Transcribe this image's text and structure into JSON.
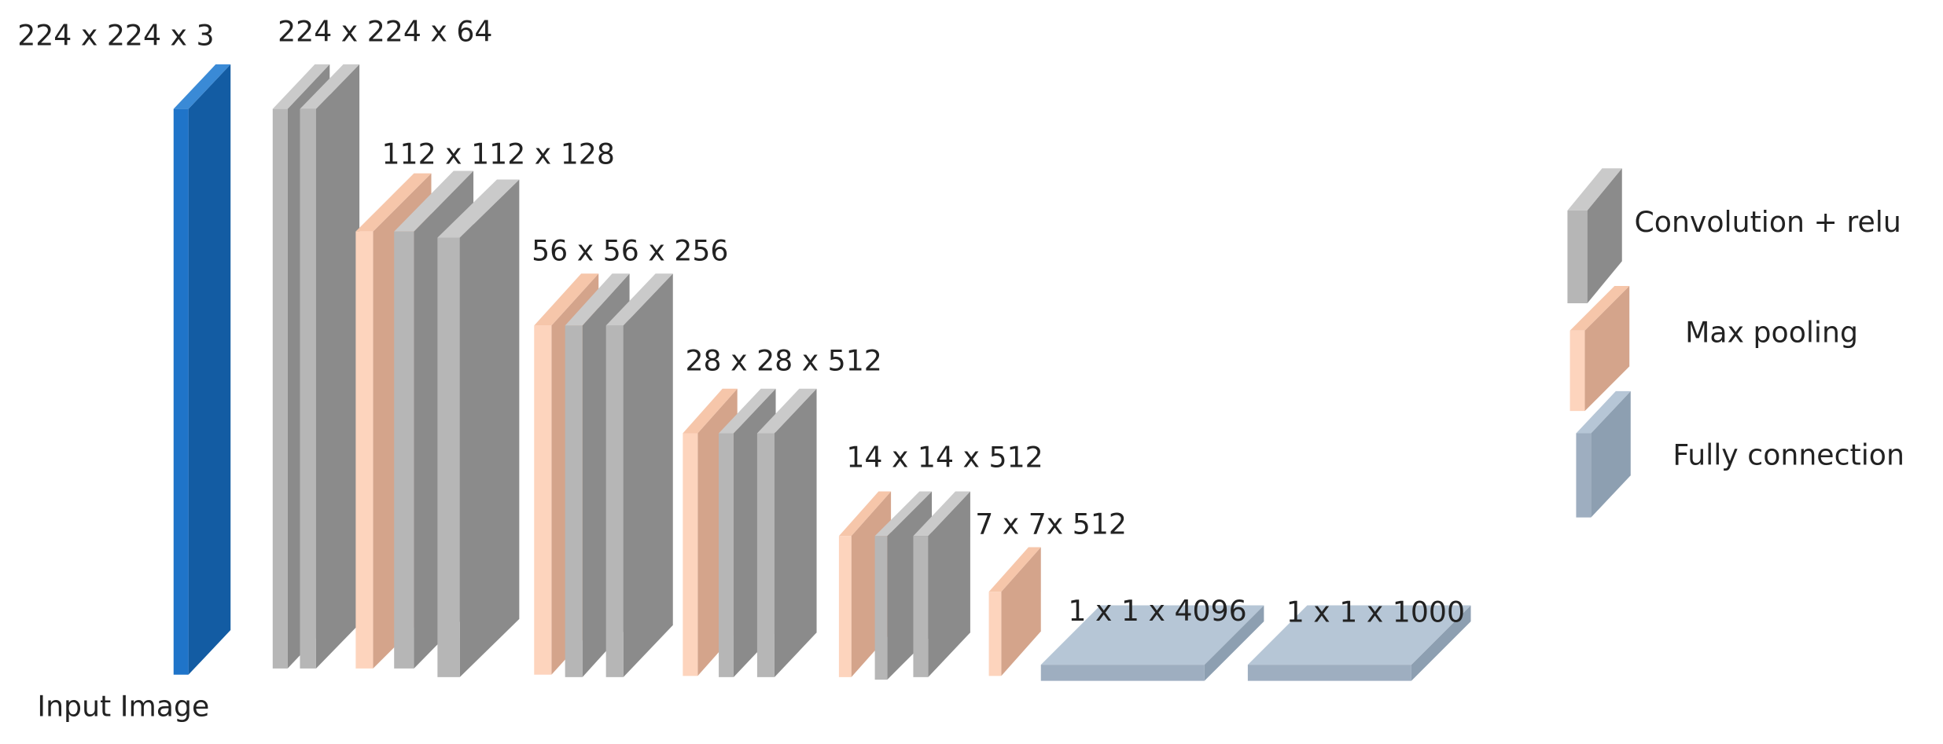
{
  "layer_labels": [
    "224 x 224 x 3",
    "224 x 224 x 64",
    "112 x 112 x 128",
    "56 x 56 x 256",
    "28 x 28 x 512",
    "14 x 14 x 512",
    "7 x 7x 512",
    "1 x 1 x 4096",
    "1 x 1 x 1000"
  ],
  "caption": "Input Image",
  "legend": [
    {
      "label": "Convolution + relu"
    },
    {
      "label": "Max pooling"
    },
    {
      "label": "Fully connection"
    }
  ]
}
